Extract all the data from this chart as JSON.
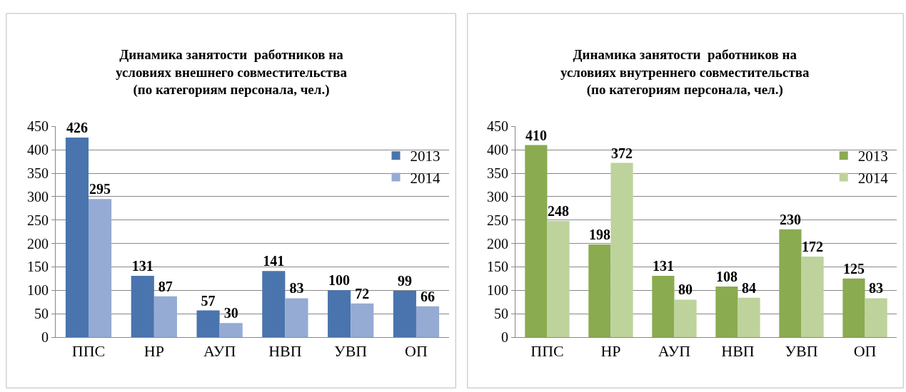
{
  "chart_data": [
    {
      "type": "bar",
      "title": "Динамика занятости  работников на\nусловиях внешнего совместительства\n(по категориям персонала, чел.)",
      "categories": [
        "ППС",
        "НР",
        "АУП",
        "НВП",
        "УВП",
        "ОП"
      ],
      "series": [
        {
          "name": "2013",
          "color": "#4a74ad",
          "values": [
            426,
            131,
            57,
            141,
            100,
            99
          ]
        },
        {
          "name": "2014",
          "color": "#95abd4",
          "values": [
            295,
            87,
            30,
            83,
            72,
            66
          ]
        }
      ],
      "ylim": [
        0,
        450
      ],
      "yticks": [
        0,
        50,
        100,
        150,
        200,
        250,
        300,
        350,
        400,
        450
      ],
      "grid": "y",
      "legend": "top right",
      "data_labels": true
    },
    {
      "type": "bar",
      "title": "Динамика занятости  работников на\nусловиях внутреннего совместительства\n(по категориям персонала, чел.)",
      "categories": [
        "ППС",
        "НР",
        "АУП",
        "НВП",
        "УВП",
        "ОП"
      ],
      "series": [
        {
          "name": "2013",
          "color": "#8aab50",
          "values": [
            410,
            198,
            131,
            108,
            230,
            125
          ]
        },
        {
          "name": "2014",
          "color": "#bdd39b",
          "values": [
            248,
            372,
            80,
            84,
            172,
            83
          ]
        }
      ],
      "ylim": [
        0,
        450
      ],
      "yticks": [
        0,
        50,
        100,
        150,
        200,
        250,
        300,
        350,
        400,
        450
      ],
      "grid": "y",
      "legend": "top right",
      "data_labels": true
    }
  ]
}
